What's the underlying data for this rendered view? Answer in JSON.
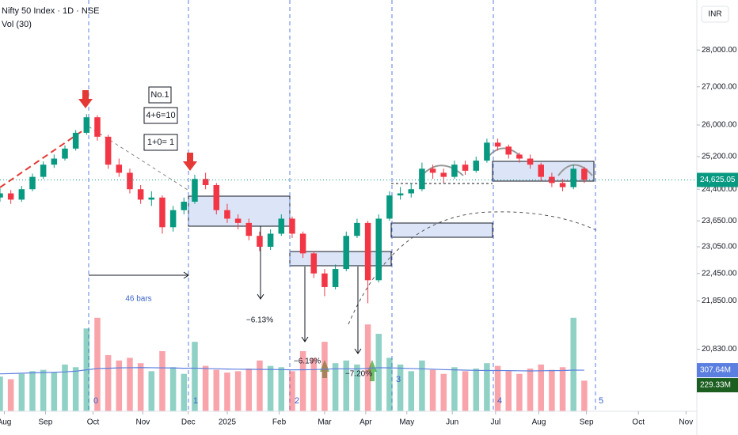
{
  "chart_data": {
    "type": "candlestick",
    "title": "Nifty 50 Index · 1D · NSE",
    "subtitle": "Vol (30)",
    "currency": "INR",
    "log_scale": true,
    "grid": false,
    "ylim": [
      19590,
      29420
    ],
    "yticks": [
      {
        "value": 28000,
        "label": "28,000.00"
      },
      {
        "value": 27000,
        "label": "27,000.00"
      },
      {
        "value": 26000,
        "label": "26,000.00"
      },
      {
        "value": 25200,
        "label": "25,200.00"
      },
      {
        "value": 24400,
        "label": "24,400.00"
      },
      {
        "value": 23650,
        "label": "23,650.00"
      },
      {
        "value": 23050,
        "label": "23,050.00"
      },
      {
        "value": 22450,
        "label": "22,450.00"
      },
      {
        "value": 21850,
        "label": "21,850.00"
      },
      {
        "value": 20830,
        "label": "20,830.00"
      }
    ],
    "xlim": [
      0,
      322
    ],
    "xticks": [
      {
        "value": 2,
        "label": "Aug"
      },
      {
        "value": 21,
        "label": "Sep"
      },
      {
        "value": 43,
        "label": "Oct"
      },
      {
        "value": 66,
        "label": "Nov"
      },
      {
        "value": 87,
        "label": "Dec"
      },
      {
        "value": 105,
        "label": "2025"
      },
      {
        "value": 129,
        "label": "Feb"
      },
      {
        "value": 150,
        "label": "Mar"
      },
      {
        "value": 169,
        "label": "Apr"
      },
      {
        "value": 188,
        "label": "May"
      },
      {
        "value": 209,
        "label": "Jun"
      },
      {
        "value": 229,
        "label": "Jul"
      },
      {
        "value": 249,
        "label": "Aug"
      },
      {
        "value": 271,
        "label": "Sep"
      },
      {
        "value": 295,
        "label": "Oct"
      },
      {
        "value": 317,
        "label": "Nov"
      }
    ],
    "up_color": "#089981",
    "down_color": "#f23645",
    "candles": {
      "x": [
        0,
        5,
        10,
        15,
        20,
        25,
        30,
        35,
        40,
        45,
        50,
        55,
        60,
        65,
        70,
        75,
        80,
        85,
        90,
        95,
        100,
        105,
        110,
        115,
        120,
        125,
        130,
        135,
        140,
        145,
        150,
        155,
        160,
        165,
        170,
        175,
        180,
        185,
        190,
        195,
        200,
        205,
        210,
        215,
        220,
        225,
        230,
        235,
        240,
        245,
        250,
        255,
        260,
        265,
        270
      ],
      "open": [
        24200,
        24300,
        24150,
        24400,
        24700,
        25000,
        25150,
        25400,
        25800,
        26200,
        25700,
        25000,
        24800,
        24400,
        24150,
        24200,
        23500,
        23900,
        24100,
        24650,
        24500,
        23900,
        23700,
        23600,
        23300,
        23050,
        23350,
        23700,
        23350,
        22900,
        22450,
        22150,
        22550,
        23300,
        23600,
        22300,
        23700,
        24250,
        24300,
        24400,
        24900,
        24800,
        24700,
        25000,
        24850,
        25100,
        25550,
        25450,
        25250,
        25150,
        25000,
        24700,
        24550,
        24450,
        24900
      ],
      "high": [
        24420,
        24380,
        24480,
        24780,
        25080,
        25250,
        25480,
        25870,
        26280,
        26250,
        25750,
        25150,
        24900,
        24500,
        24350,
        24250,
        24000,
        24200,
        24750,
        24800,
        24550,
        24050,
        23800,
        23700,
        23400,
        23450,
        23800,
        23750,
        23400,
        22950,
        22550,
        22650,
        23400,
        23700,
        23650,
        23800,
        24350,
        24450,
        24550,
        25050,
        25000,
        24900,
        25100,
        25100,
        25200,
        25650,
        25650,
        25500,
        25300,
        25250,
        25050,
        24800,
        24650,
        25000,
        24950
      ],
      "low": [
        24100,
        24050,
        24100,
        24350,
        24650,
        24920,
        25100,
        25350,
        25750,
        25600,
        24900,
        24700,
        24300,
        24050,
        24000,
        23350,
        23400,
        23800,
        24050,
        24400,
        23800,
        23600,
        23450,
        23200,
        22950,
        22980,
        23300,
        23250,
        22800,
        22350,
        21950,
        22100,
        22500,
        23250,
        21800,
        22250,
        23650,
        24150,
        24200,
        24350,
        24650,
        24550,
        24650,
        24750,
        24800,
        25050,
        25350,
        25150,
        25050,
        24900,
        24600,
        24450,
        24350,
        24400,
        24550
      ],
      "close": [
        24300,
        24150,
        24400,
        24700,
        25000,
        25150,
        25400,
        25800,
        26200,
        25700,
        25000,
        24800,
        24400,
        24150,
        24200,
        23500,
        23900,
        24100,
        24650,
        24500,
        23900,
        23700,
        23600,
        23300,
        23050,
        23350,
        23700,
        23350,
        22900,
        22450,
        22150,
        22550,
        23300,
        23600,
        22300,
        23700,
        24250,
        24300,
        24400,
        24900,
        24800,
        24700,
        25000,
        24850,
        25100,
        25550,
        25450,
        25250,
        25150,
        25000,
        24700,
        24550,
        24450,
        24900,
        24625.05
      ]
    },
    "last_price": {
      "value": 24625.05,
      "label": "24,625.05",
      "color": "#089981"
    },
    "volume": {
      "ylim": [
        0,
        900
      ],
      "ma_color": "#5b7fe0",
      "values": [
        260,
        240,
        280,
        300,
        310,
        290,
        350,
        330,
        620,
        700,
        420,
        380,
        400,
        360,
        300,
        450,
        330,
        280,
        520,
        340,
        310,
        290,
        300,
        320,
        380,
        340,
        330,
        300,
        450,
        400,
        520,
        360,
        380,
        350,
        650,
        580,
        400,
        350,
        300,
        380,
        310,
        280,
        330,
        300,
        320,
        360,
        340,
        300,
        280,
        320,
        350,
        310,
        330,
        700,
        229.33
      ],
      "ma": [
        280,
        282,
        285,
        288,
        290,
        292,
        295,
        300,
        310,
        320,
        322,
        325,
        326,
        327,
        326,
        325,
        324,
        322,
        323,
        320,
        318,
        316,
        315,
        314,
        314,
        313,
        312,
        310,
        311,
        312,
        315,
        318,
        318,
        318,
        322,
        326,
        325,
        323,
        320,
        318,
        315,
        312,
        310,
        308,
        306,
        305,
        305,
        304,
        303,
        302,
        303,
        304,
        305,
        308,
        307.64
      ],
      "ma_label": "307.64M",
      "last_label": "229.33M"
    },
    "annotations": {
      "box_labels": [
        "No.1",
        "4+6=10",
        "1+0= 1"
      ],
      "bars_count": "46 bars",
      "drops": [
        "−6.13%",
        "−6.19%",
        "−7.20%"
      ],
      "cycle_labels": [
        "0",
        "1",
        "2",
        "3",
        "4",
        "5"
      ]
    }
  }
}
